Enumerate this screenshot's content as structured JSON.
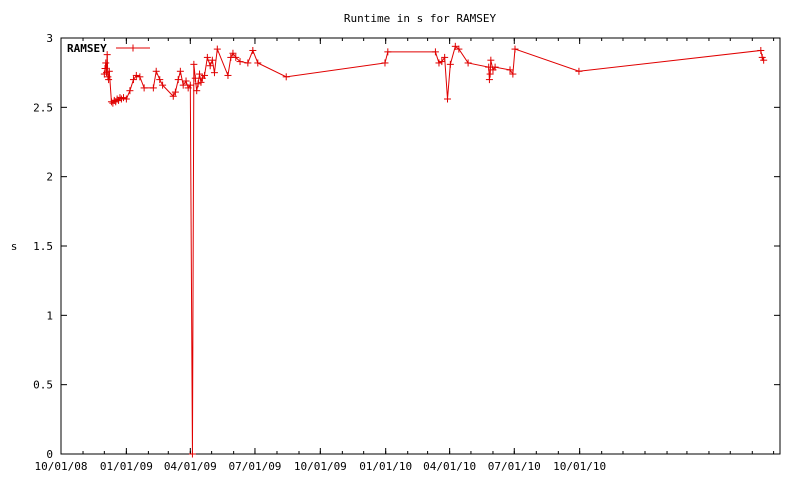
{
  "chart_data": {
    "type": "line",
    "title": "Runtime in s for RAMSEY",
    "xlabel": "",
    "ylabel": "s",
    "xlim": [
      "2008-10-01",
      "2011-07-10"
    ],
    "ylim": [
      0,
      3
    ],
    "x_ticks": [
      "10/01/08",
      "01/01/09",
      "04/01/09",
      "07/01/09",
      "10/01/09",
      "01/01/10",
      "04/01/10",
      "07/01/10",
      "10/01/10"
    ],
    "y_ticks": [
      "0",
      "0.5",
      "1",
      "1.5",
      "2",
      "2.5",
      "3"
    ],
    "grid": false,
    "legend_position": "top-left",
    "color": "#e00000",
    "series": [
      {
        "name": "RAMSEY",
        "points": [
          [
            "2008-12-01",
            2.74
          ],
          [
            "2008-12-02",
            2.78
          ],
          [
            "2008-12-03",
            2.82
          ],
          [
            "2008-12-04",
            2.75
          ],
          [
            "2008-12-05",
            2.88
          ],
          [
            "2008-12-06",
            2.72
          ],
          [
            "2008-12-07",
            2.7
          ],
          [
            "2008-12-08",
            2.76
          ],
          [
            "2008-12-11",
            2.54
          ],
          [
            "2008-12-13",
            2.53
          ],
          [
            "2008-12-15",
            2.55
          ],
          [
            "2008-12-17",
            2.54
          ],
          [
            "2008-12-19",
            2.56
          ],
          [
            "2008-12-21",
            2.55
          ],
          [
            "2008-12-23",
            2.57
          ],
          [
            "2008-12-25",
            2.56
          ],
          [
            "2008-12-28",
            2.57
          ],
          [
            "2009-01-01",
            2.56
          ],
          [
            "2009-01-06",
            2.62
          ],
          [
            "2009-01-11",
            2.7
          ],
          [
            "2009-01-15",
            2.73
          ],
          [
            "2009-01-20",
            2.72
          ],
          [
            "2009-01-26",
            2.64
          ],
          [
            "2009-02-08",
            2.64
          ],
          [
            "2009-02-12",
            2.76
          ],
          [
            "2009-02-17",
            2.7
          ],
          [
            "2009-02-21",
            2.66
          ],
          [
            "2009-03-08",
            2.58
          ],
          [
            "2009-03-11",
            2.61
          ],
          [
            "2009-03-15",
            2.7
          ],
          [
            "2009-03-18",
            2.76
          ],
          [
            "2009-03-22",
            2.66
          ],
          [
            "2009-03-26",
            2.69
          ],
          [
            "2009-03-29",
            2.64
          ],
          [
            "2009-04-01",
            2.66
          ],
          [
            "2009-04-04",
            0.0
          ],
          [
            "2009-04-06",
            2.81
          ],
          [
            "2009-04-08",
            2.71
          ],
          [
            "2009-04-10",
            2.62
          ],
          [
            "2009-04-12",
            2.67
          ],
          [
            "2009-04-14",
            2.74
          ],
          [
            "2009-04-16",
            2.68
          ],
          [
            "2009-04-18",
            2.71
          ],
          [
            "2009-04-21",
            2.73
          ],
          [
            "2009-04-25",
            2.86
          ],
          [
            "2009-04-29",
            2.8
          ],
          [
            "2009-05-02",
            2.84
          ],
          [
            "2009-05-05",
            2.75
          ],
          [
            "2009-05-09",
            2.92
          ],
          [
            "2009-05-24",
            2.73
          ],
          [
            "2009-05-28",
            2.86
          ],
          [
            "2009-05-31",
            2.89
          ],
          [
            "2009-06-04",
            2.86
          ],
          [
            "2009-06-10",
            2.83
          ],
          [
            "2009-06-21",
            2.82
          ],
          [
            "2009-06-28",
            2.91
          ],
          [
            "2009-07-05",
            2.82
          ],
          [
            "2009-08-14",
            2.72
          ],
          [
            "2009-12-31",
            2.82
          ],
          [
            "2010-01-04",
            2.9
          ],
          [
            "2010-03-12",
            2.9
          ],
          [
            "2010-03-17",
            2.82
          ],
          [
            "2010-03-21",
            2.83
          ],
          [
            "2010-03-25",
            2.86
          ],
          [
            "2010-03-29",
            2.56
          ],
          [
            "2010-04-02",
            2.81
          ],
          [
            "2010-04-09",
            2.94
          ],
          [
            "2010-04-14",
            2.92
          ],
          [
            "2010-04-27",
            2.82
          ],
          [
            "2010-05-26",
            2.79
          ],
          [
            "2010-05-27",
            2.7
          ],
          [
            "2010-05-28",
            2.74
          ],
          [
            "2010-05-29",
            2.84
          ],
          [
            "2010-06-01",
            2.77
          ],
          [
            "2010-06-04",
            2.79
          ],
          [
            "2010-06-25",
            2.77
          ],
          [
            "2010-06-29",
            2.74
          ],
          [
            "2010-07-02",
            2.92
          ],
          [
            "2010-09-30",
            2.76
          ],
          [
            "2011-06-13",
            2.91
          ],
          [
            "2011-06-15",
            2.86
          ],
          [
            "2011-06-17",
            2.84
          ]
        ]
      }
    ]
  }
}
